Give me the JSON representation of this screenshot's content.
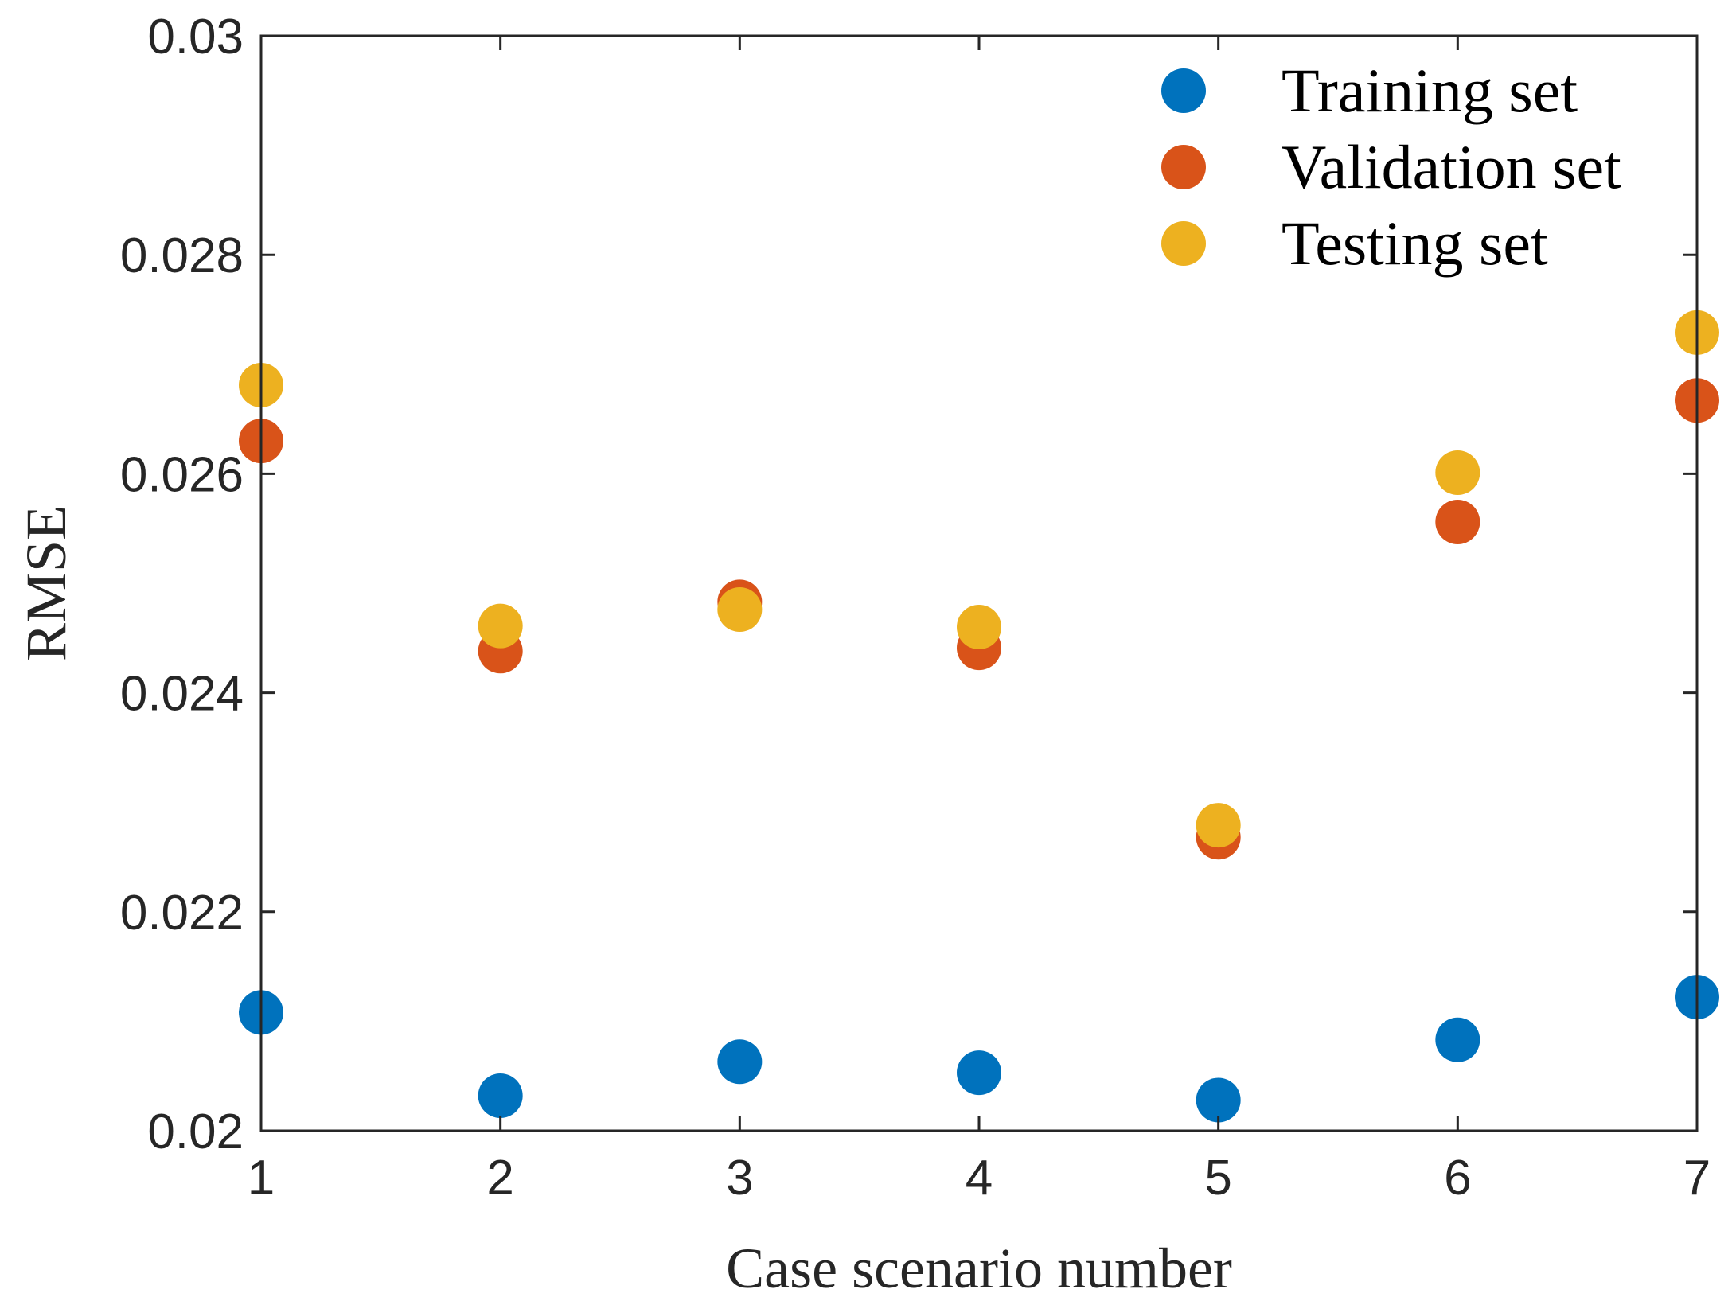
{
  "chart_data": {
    "type": "scatter",
    "title": "",
    "xlabel": "Case scenario number",
    "ylabel": "RMSE",
    "xlim": [
      1,
      7
    ],
    "ylim": [
      0.02,
      0.03
    ],
    "xticks": [
      "1",
      "2",
      "3",
      "4",
      "5",
      "6",
      "7"
    ],
    "yticks": [
      "0.02",
      "0.022",
      "0.024",
      "0.026",
      "0.028",
      "0.03"
    ],
    "grid": false,
    "legend_position": "top-right",
    "series": [
      {
        "name": "Training set",
        "color": "#0072BD",
        "x": [
          1,
          2,
          3,
          4,
          5,
          6,
          7
        ],
        "y": [
          0.02108,
          0.02032,
          0.02063,
          0.02053,
          0.02028,
          0.02083,
          0.02122
        ]
      },
      {
        "name": "Validation set",
        "color": "#D95319",
        "x": [
          1,
          2,
          3,
          4,
          5,
          6,
          7
        ],
        "y": [
          0.0263,
          0.02438,
          0.02483,
          0.02441,
          0.02268,
          0.02556,
          0.02667
        ]
      },
      {
        "name": "Testing set",
        "color": "#EDB120",
        "x": [
          1,
          2,
          3,
          4,
          5,
          6,
          7
        ],
        "y": [
          0.02681,
          0.02461,
          0.02476,
          0.0246,
          0.02279,
          0.02601,
          0.02729
        ]
      }
    ]
  }
}
